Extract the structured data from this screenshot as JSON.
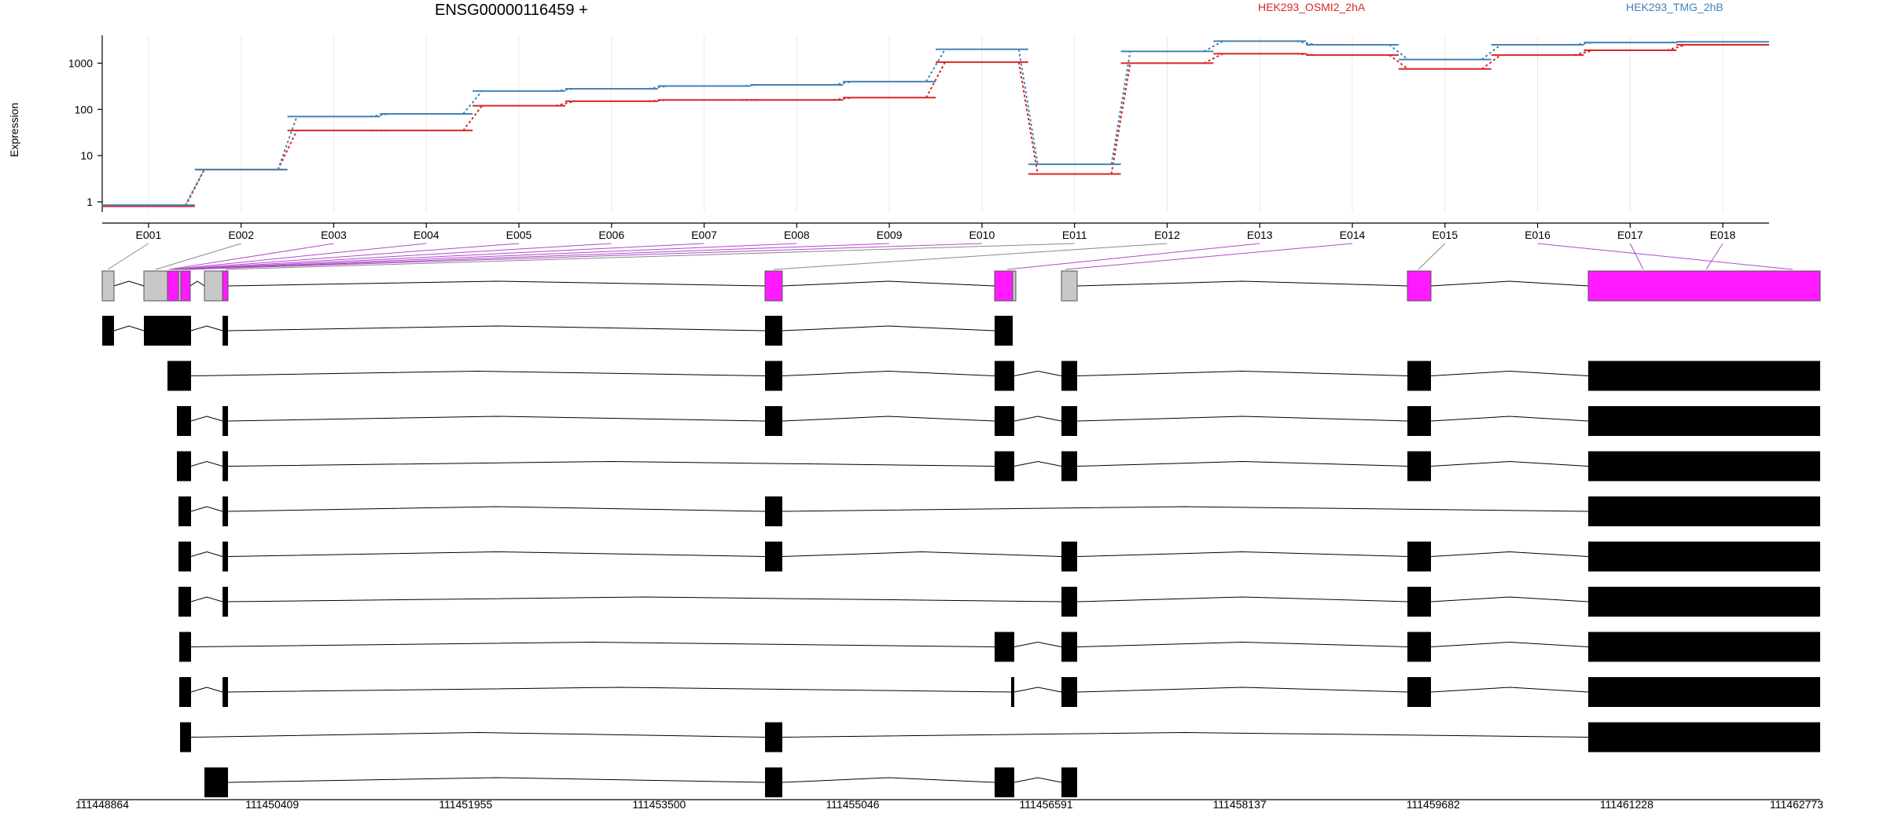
{
  "chart_data": {
    "type": "line",
    "title": "ENSG00000116459 +",
    "ylabel": "Expression",
    "yscale": "log",
    "ylim": [
      0.6,
      4000
    ],
    "yticks": [
      "1",
      "10",
      "100",
      "1000"
    ],
    "ytick_values": [
      1,
      10,
      100,
      1000
    ],
    "categories": [
      "E001",
      "E002",
      "E003",
      "E004",
      "E005",
      "E006",
      "E007",
      "E008",
      "E009",
      "E010",
      "E011",
      "E012",
      "E013",
      "E014",
      "E015",
      "E016",
      "E017",
      "E018"
    ],
    "series": [
      {
        "name": "HEK293_OSMI2_2hA",
        "color": "#d62728",
        "values": [
          0.8,
          5,
          35,
          35,
          120,
          150,
          160,
          160,
          180,
          1050,
          4,
          1000,
          1600,
          1500,
          750,
          1500,
          1900,
          2500
        ]
      },
      {
        "name": "HEK293_TMG_2hB",
        "color": "#4682b4",
        "values": [
          0.85,
          5,
          70,
          80,
          250,
          280,
          320,
          340,
          400,
          2000,
          6.5,
          1800,
          3000,
          2500,
          1200,
          2500,
          2800,
          2900
        ]
      }
    ],
    "genomic_ticks": [
      "111448864",
      "111450409",
      "111451955",
      "111453500",
      "111455046",
      "111456591",
      "111458137",
      "111459682",
      "111461228",
      "111462773"
    ],
    "exon_colors": {
      "significant": "#ff1aff",
      "other": "#c8c8c8",
      "transcript": "#000000"
    },
    "significant_exons": [
      "E003",
      "E004",
      "E005",
      "E006",
      "E007",
      "E008",
      "E009",
      "E010",
      "E013",
      "E014",
      "E016",
      "E017",
      "E018"
    ],
    "grid": true,
    "legend_position": "top"
  }
}
